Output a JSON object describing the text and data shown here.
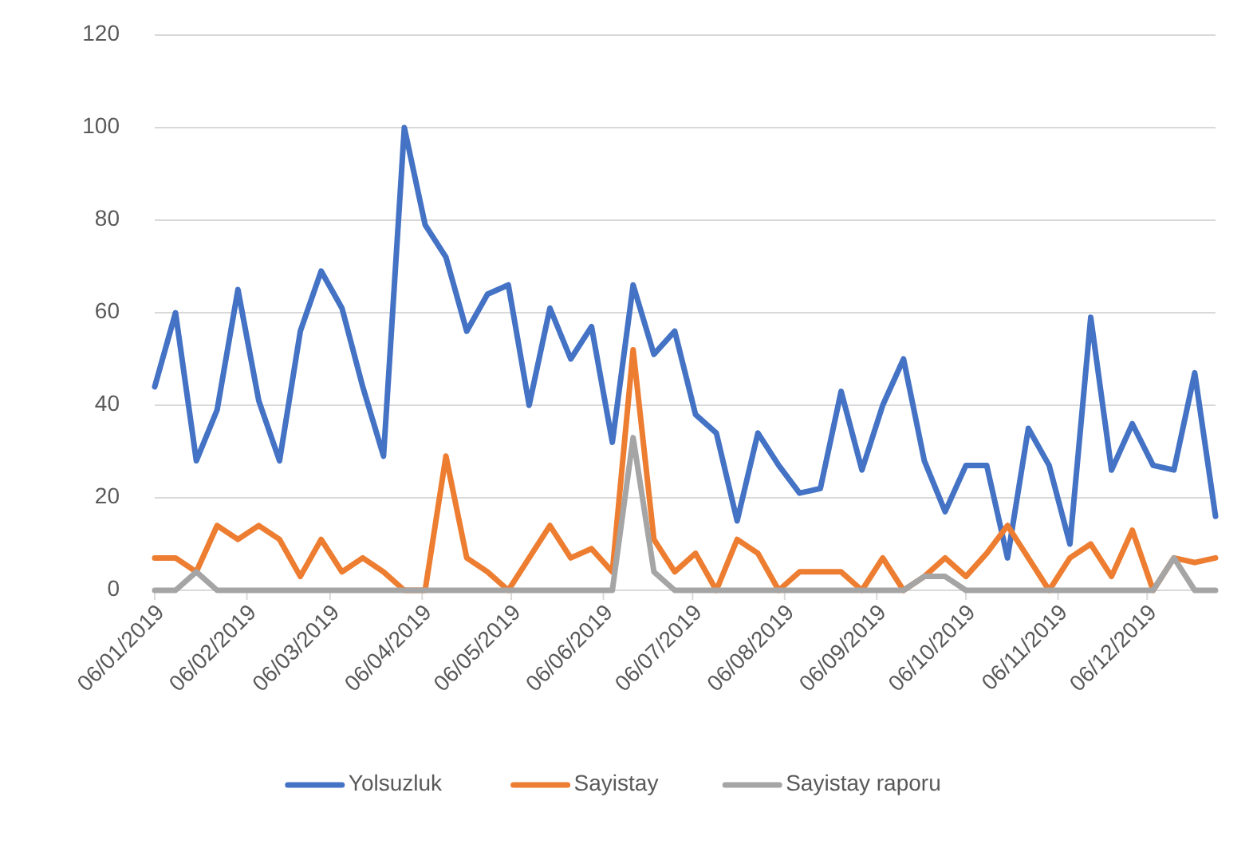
{
  "chart_data": {
    "type": "line",
    "x": [
      "2019-01-06",
      "2019-01-13",
      "2019-01-20",
      "2019-01-27",
      "2019-02-03",
      "2019-02-10",
      "2019-02-17",
      "2019-02-24",
      "2019-03-03",
      "2019-03-10",
      "2019-03-17",
      "2019-03-24",
      "2019-03-31",
      "2019-04-07",
      "2019-04-14",
      "2019-04-21",
      "2019-04-28",
      "2019-05-05",
      "2019-05-12",
      "2019-05-19",
      "2019-05-26",
      "2019-06-02",
      "2019-06-09",
      "2019-06-16",
      "2019-06-23",
      "2019-06-30",
      "2019-07-07",
      "2019-07-14",
      "2019-07-21",
      "2019-07-28",
      "2019-08-04",
      "2019-08-11",
      "2019-08-18",
      "2019-08-25",
      "2019-09-01",
      "2019-09-08",
      "2019-09-15",
      "2019-09-22",
      "2019-09-29",
      "2019-10-06",
      "2019-10-13",
      "2019-10-20",
      "2019-10-27",
      "2019-11-03",
      "2019-11-10",
      "2019-11-17",
      "2019-11-24",
      "2019-12-01",
      "2019-12-08",
      "2019-12-15",
      "2019-12-22",
      "2019-12-29"
    ],
    "series": [
      {
        "name": "Yolsuzluk",
        "color": "#4472c4",
        "values": [
          44,
          60,
          28,
          39,
          65,
          41,
          28,
          56,
          69,
          61,
          44,
          29,
          100,
          79,
          72,
          56,
          64,
          66,
          40,
          61,
          50,
          57,
          32,
          66,
          51,
          56,
          38,
          34,
          15,
          34,
          27,
          21,
          22,
          43,
          26,
          40,
          50,
          28,
          17,
          27,
          27,
          7,
          35,
          27,
          10,
          59,
          26,
          36,
          27,
          26,
          47,
          16
        ]
      },
      {
        "name": "Sayistay",
        "color": "#ed7d31",
        "values": [
          7,
          7,
          4,
          14,
          11,
          14,
          11,
          3,
          11,
          4,
          7,
          4,
          0,
          0,
          29,
          7,
          4,
          0,
          7,
          14,
          7,
          9,
          4,
          52,
          11,
          4,
          8,
          0,
          11,
          8,
          0,
          4,
          4,
          4,
          0,
          7,
          0,
          3,
          7,
          3,
          8,
          14,
          7,
          0,
          7,
          10,
          3,
          13,
          0,
          7,
          6,
          7
        ]
      },
      {
        "name": "Sayistay raporu",
        "color": "#a5a5a5",
        "values": [
          0,
          0,
          4,
          0,
          0,
          0,
          0,
          0,
          0,
          0,
          0,
          0,
          0,
          0,
          0,
          0,
          0,
          0,
          0,
          0,
          0,
          0,
          0,
          33,
          4,
          0,
          0,
          0,
          0,
          0,
          0,
          0,
          0,
          0,
          0,
          0,
          0,
          3,
          3,
          0,
          0,
          0,
          0,
          0,
          0,
          0,
          0,
          0,
          0,
          7,
          0,
          0
        ]
      }
    ],
    "xlim": [
      "2019-01-06",
      "2019-12-29"
    ],
    "xticks": [
      {
        "value": "2019-01-06",
        "label": "06/01/2019"
      },
      {
        "value": "2019-02-06",
        "label": "06/02/2019"
      },
      {
        "value": "2019-03-06",
        "label": "06/03/2019"
      },
      {
        "value": "2019-04-06",
        "label": "06/04/2019"
      },
      {
        "value": "2019-05-06",
        "label": "06/05/2019"
      },
      {
        "value": "2019-06-06",
        "label": "06/06/2019"
      },
      {
        "value": "2019-07-06",
        "label": "06/07/2019"
      },
      {
        "value": "2019-08-06",
        "label": "06/08/2019"
      },
      {
        "value": "2019-09-06",
        "label": "06/09/2019"
      },
      {
        "value": "2019-10-06",
        "label": "06/10/2019"
      },
      {
        "value": "2019-11-06",
        "label": "06/11/2019"
      },
      {
        "value": "2019-12-06",
        "label": "06/12/2019"
      }
    ],
    "ylim": [
      0,
      120
    ],
    "yticks": [
      0,
      20,
      40,
      60,
      80,
      100,
      120
    ],
    "grid": "y",
    "legend": "bottom",
    "marker": "none",
    "line_style": "solid"
  }
}
